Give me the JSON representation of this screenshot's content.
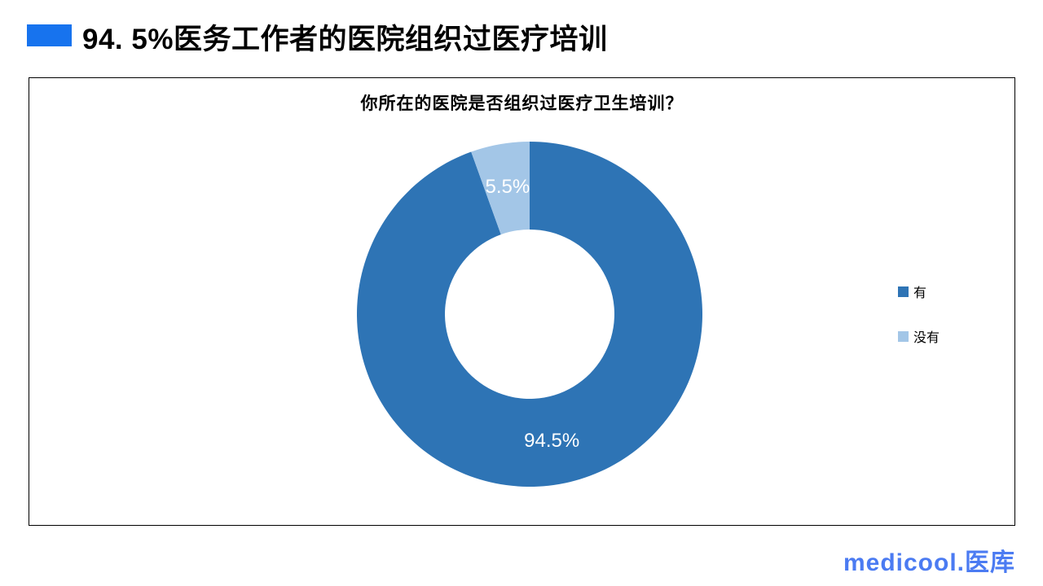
{
  "header": {
    "title": "94. 5%医务工作者的医院组织过医疗培训",
    "accent_color": "#1773EE"
  },
  "chart_data": {
    "type": "pie",
    "subtype": "donut",
    "title": "你所在的医院是否组织过医疗卫生培训？",
    "categories": [
      "有",
      "没有"
    ],
    "values": [
      94.5,
      5.5
    ],
    "data_labels": [
      "94.5%",
      "5.5%"
    ],
    "colors": [
      "#2E74B5",
      "#A3C6E7"
    ],
    "label_color": "#FFFFFF",
    "donut_hole_ratio": 0.49,
    "legend_position": "right",
    "start_angle_deg": 0
  },
  "legend": {
    "items": [
      {
        "label": "有",
        "color": "#2E74B5"
      },
      {
        "label": "没有",
        "color": "#A3C6E7"
      }
    ]
  },
  "footer": {
    "logo": "medicool.医库",
    "logo_color": "#4B7BF2"
  }
}
